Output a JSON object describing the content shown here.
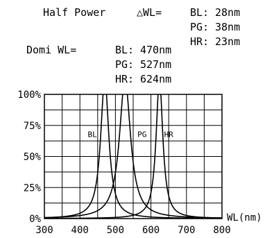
{
  "chart_data": {
    "type": "line",
    "half_power": {
      "label": "Half Power",
      "symbol": "△WL=",
      "rows": [
        {
          "name": "BL:",
          "value": "28nm"
        },
        {
          "name": "PG:",
          "value": "38nm"
        },
        {
          "name": "HR:",
          "value": "23nm"
        }
      ]
    },
    "dominant": {
      "label": "Domi WL=",
      "rows": [
        {
          "name": "BL:",
          "value": "470nm"
        },
        {
          "name": "PG:",
          "value": "527nm"
        },
        {
          "name": "HR:",
          "value": "624nm"
        }
      ]
    },
    "xlabel": "WL(nm)",
    "ylabel": "",
    "xlim": [
      300,
      800
    ],
    "ylim": [
      0,
      100
    ],
    "x_ticks": [
      300,
      400,
      500,
      600,
      700,
      800
    ],
    "y_ticks": [
      {
        "value": 0,
        "label": "0%"
      },
      {
        "value": 25,
        "label": "25%"
      },
      {
        "value": 50,
        "label": "50%"
      },
      {
        "value": 75,
        "label": "75%"
      },
      {
        "value": 100,
        "label": "100%"
      }
    ],
    "grid": true,
    "series": [
      {
        "name": "BL",
        "peak": 470,
        "fwhm": 28,
        "label_x": 435,
        "label_y": 68
      },
      {
        "name": "PG",
        "peak": 527,
        "fwhm": 38,
        "label_x": 575,
        "label_y": 68
      },
      {
        "name": "HR",
        "peak": 624,
        "fwhm": 23,
        "label_x": 650,
        "label_y": 68
      }
    ],
    "line_color": "#000000"
  }
}
